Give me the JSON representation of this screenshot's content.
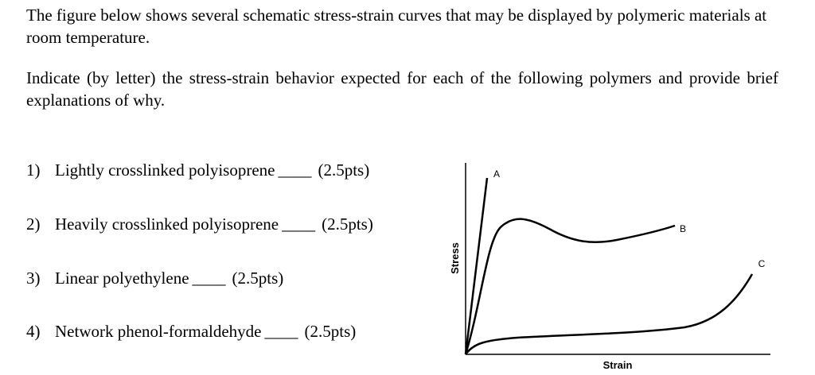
{
  "intro": "The figure below shows several schematic stress-strain curves that may be displayed by polymeric materials at room temperature.",
  "instruction": "Indicate (by letter) the stress-strain behavior expected for each of the following polymers and provide brief explanations of why.",
  "items": [
    {
      "number": "1)",
      "text": "Lightly crosslinked polyisoprene",
      "blank": "____",
      "points": "(2.5pts)"
    },
    {
      "number": "2)",
      "text": "Heavily crosslinked polyisoprene",
      "blank": "____",
      "points": "(2.5pts)"
    },
    {
      "number": "3)",
      "text": "Linear polyethylene",
      "blank": "____",
      "points": "(2.5pts)"
    },
    {
      "number": "4)",
      "text": "Network phenol-formaldehyde",
      "blank": "____",
      "points": "(2.5pts)"
    }
  ],
  "figure": {
    "y_label": "Stress",
    "x_label": "Strain",
    "curve_labels": [
      "A",
      "B",
      "C"
    ]
  }
}
